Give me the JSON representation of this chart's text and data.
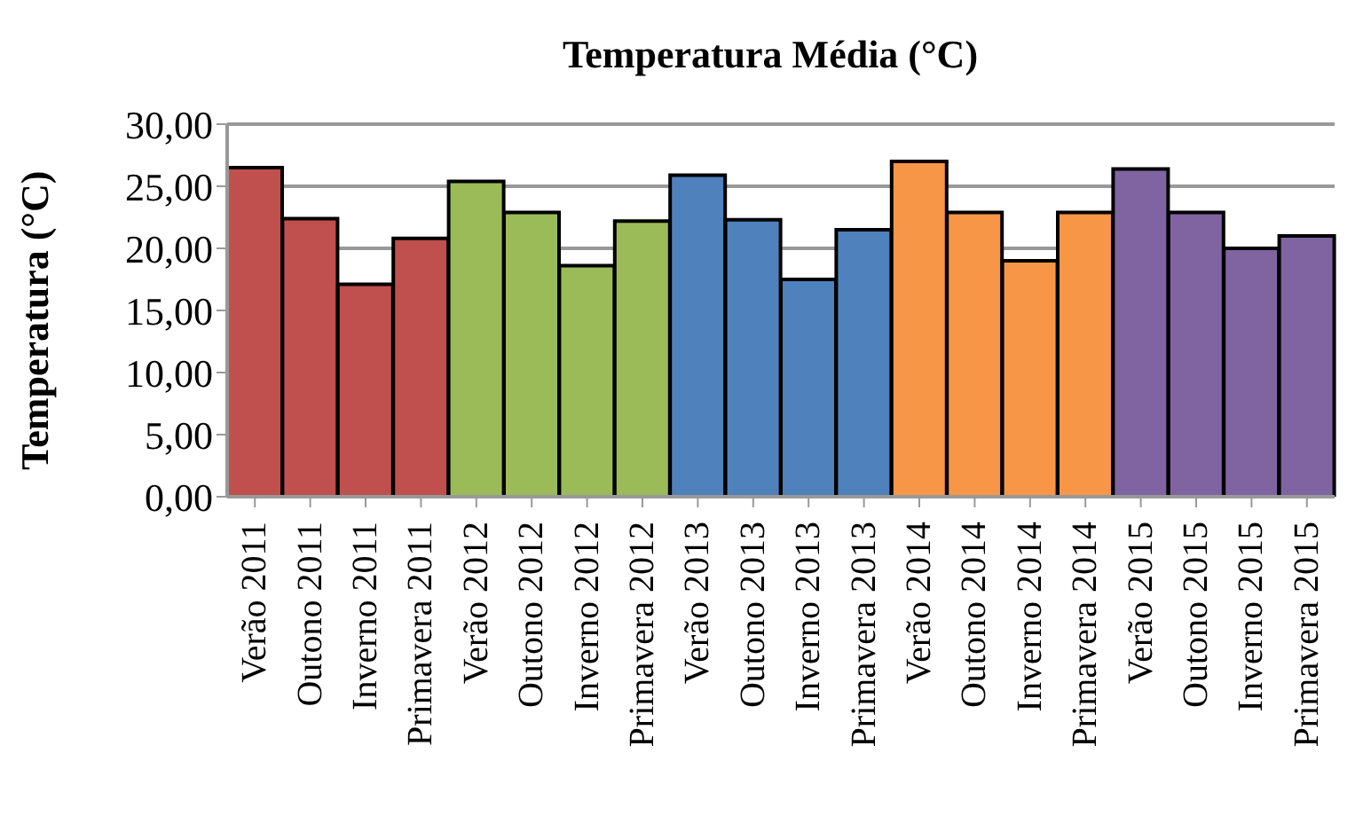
{
  "chart_data": {
    "type": "bar",
    "title": "Temperatura Média (°C)",
    "ylabel": "Temperatura (°C)",
    "categories": [
      "Verão 2011",
      "Outono 2011",
      "Inverno 2011",
      "Primavera 2011",
      "Verão 2012",
      "Outono 2012",
      "Inverno 2012",
      "Primavera 2012",
      "Verão 2013",
      "Outono 2013",
      "Inverno 2013",
      "Primavera 2013",
      "Verão 2014",
      "Outono 2014",
      "Inverno 2014",
      "Primavera 2014",
      "Verão 2015",
      "Outono 2015",
      "Inverno 2015",
      "Primavera 2015"
    ],
    "values": [
      26.5,
      22.4,
      17.1,
      20.8,
      25.4,
      22.9,
      18.6,
      22.2,
      25.9,
      22.3,
      17.5,
      21.5,
      27.0,
      22.9,
      19.0,
      22.9,
      26.4,
      22.9,
      20.0,
      21.0
    ],
    "colors": [
      "#c0504d",
      "#c0504d",
      "#c0504d",
      "#c0504d",
      "#9bbb59",
      "#9bbb59",
      "#9bbb59",
      "#9bbb59",
      "#4f81bd",
      "#4f81bd",
      "#4f81bd",
      "#4f81bd",
      "#f79646",
      "#f79646",
      "#f79646",
      "#f79646",
      "#8064a2",
      "#8064a2",
      "#8064a2",
      "#8064a2"
    ],
    "ylim": [
      0,
      30
    ],
    "yticks": [
      {
        "value": 0,
        "label": "0,00"
      },
      {
        "value": 5,
        "label": "5,00"
      },
      {
        "value": 10,
        "label": "10,00"
      },
      {
        "value": 15,
        "label": "15,00"
      },
      {
        "value": 20,
        "label": "20,00"
      },
      {
        "value": 25,
        "label": "25,00"
      },
      {
        "value": 30,
        "label": "30,00"
      }
    ],
    "grid": "y",
    "legend": false
  }
}
